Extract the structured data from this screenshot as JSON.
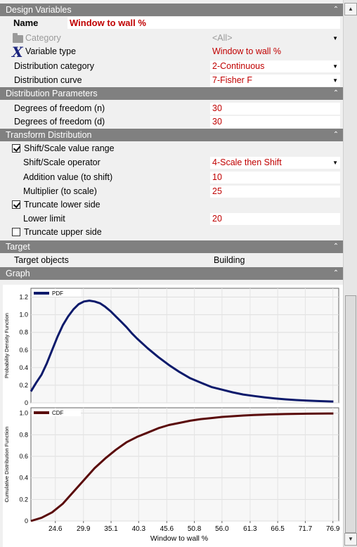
{
  "sections": {
    "design_variables": "Design Variables",
    "distribution_parameters": "Distribution Parameters",
    "transform_distribution": "Transform Distribution",
    "target": "Target",
    "graph": "Graph"
  },
  "design": {
    "name_label": "Name",
    "name_value": "Window to wall %",
    "category_label": "Category",
    "category_value": "<All>",
    "variable_type_label": "Variable type",
    "variable_type_value": "Window to wall %",
    "distribution_category_label": "Distribution category",
    "distribution_category_value": "2-Continuous",
    "distribution_curve_label": "Distribution curve",
    "distribution_curve_value": "7-Fisher F"
  },
  "parameters": {
    "dof_n_label": "Degrees of freedom (n)",
    "dof_n_value": "30",
    "dof_d_label": "Degrees of freedom (d)",
    "dof_d_value": "30"
  },
  "transform": {
    "shift_scale_label": "Shift/Scale value range",
    "shift_scale_checked": true,
    "operator_label": "Shift/Scale operator",
    "operator_value": "4-Scale then Shift",
    "addition_label": "Addition value (to shift)",
    "addition_value": "10",
    "multiplier_label": "Multiplier (to scale)",
    "multiplier_value": "25",
    "truncate_lower_label": "Truncate lower side",
    "truncate_lower_checked": true,
    "lower_limit_label": "Lower limit",
    "lower_limit_value": "20",
    "truncate_upper_label": "Truncate upper side",
    "truncate_upper_checked": false
  },
  "target": {
    "objects_label": "Target objects",
    "objects_value": "Building"
  },
  "colors": {
    "pdf_line": "#0c1a6b",
    "cdf_line": "#5a0a0a",
    "header_bg": "#808080",
    "value_red": "#c00000"
  },
  "chart_data": [
    {
      "type": "line",
      "ylabel": "Probability Density Function",
      "legend": [
        "PDF"
      ],
      "legend_position": "top-left",
      "grid": true,
      "xlim": [
        20,
        78
      ],
      "ylim": [
        0,
        1.3
      ],
      "yticks": [
        0,
        0.2,
        0.4,
        0.6,
        0.8,
        1.0,
        1.2
      ],
      "series": [
        {
          "name": "PDF",
          "x": [
            20,
            21,
            22,
            23,
            24,
            25,
            26,
            27,
            28,
            29,
            30,
            31,
            32,
            33,
            34,
            35,
            36,
            37,
            38,
            39,
            40,
            42,
            44,
            46,
            48,
            50,
            52,
            54,
            56,
            58,
            60,
            62,
            64,
            66,
            68,
            70,
            72,
            74,
            76,
            77
          ],
          "values": [
            0.13,
            0.23,
            0.32,
            0.45,
            0.6,
            0.75,
            0.88,
            0.98,
            1.06,
            1.12,
            1.15,
            1.16,
            1.15,
            1.13,
            1.09,
            1.04,
            0.98,
            0.92,
            0.86,
            0.79,
            0.73,
            0.62,
            0.52,
            0.43,
            0.35,
            0.28,
            0.23,
            0.18,
            0.15,
            0.12,
            0.095,
            0.078,
            0.063,
            0.05,
            0.04,
            0.032,
            0.026,
            0.021,
            0.017,
            0.015
          ]
        }
      ]
    },
    {
      "type": "line",
      "ylabel": "Cumulative Distribution Function",
      "xlabel": "Window to wall %",
      "legend": [
        "CDF"
      ],
      "legend_position": "top-left",
      "grid": true,
      "xlim": [
        20,
        78
      ],
      "ylim": [
        0,
        1.05
      ],
      "yticks": [
        0,
        0.2,
        0.4,
        0.6,
        0.8,
        1.0
      ],
      "xticks": [
        "24.6",
        "29.9",
        "35.1",
        "40.3",
        "45.6",
        "50.8",
        "56.0",
        "61.3",
        "66.5",
        "71.7",
        "76.9"
      ],
      "series": [
        {
          "name": "CDF",
          "x": [
            20,
            22,
            24,
            26,
            28,
            30,
            32,
            34,
            36,
            38,
            40,
            42,
            44,
            46,
            48,
            50,
            52,
            54,
            56,
            58,
            60,
            62,
            64,
            66,
            68,
            70,
            72,
            74,
            76,
            77
          ],
          "values": [
            0.0,
            0.03,
            0.08,
            0.16,
            0.27,
            0.38,
            0.49,
            0.58,
            0.66,
            0.73,
            0.78,
            0.82,
            0.86,
            0.89,
            0.91,
            0.93,
            0.945,
            0.955,
            0.965,
            0.972,
            0.978,
            0.983,
            0.987,
            0.99,
            0.992,
            0.994,
            0.995,
            0.996,
            0.997,
            0.997
          ]
        }
      ]
    }
  ]
}
